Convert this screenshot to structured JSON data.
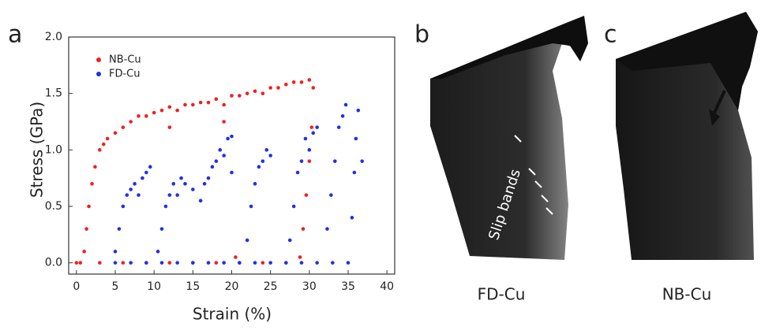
{
  "chart_data": {
    "type": "scatter",
    "panel_label": "a",
    "xlabel": "Strain (%)",
    "ylabel": "Stress (GPa)",
    "xlim": [
      -1,
      41
    ],
    "ylim": [
      -0.1,
      2.0
    ],
    "xticks": [
      0,
      5,
      10,
      15,
      20,
      25,
      30,
      35,
      40
    ],
    "yticks": [
      {
        "value": 0,
        "label": "0.0"
      },
      0.5,
      {
        "value": 1,
        "label": "1.0"
      },
      1.5,
      {
        "value": 2,
        "label": "2.0"
      }
    ],
    "legend": "upper left",
    "series": [
      {
        "name": "NB-Cu",
        "color": "#f02020",
        "x": [
          0.5,
          1,
          1.3,
          1.6,
          2,
          2.4,
          3,
          3.5,
          4,
          5,
          6,
          7,
          8,
          9,
          10,
          11,
          12,
          13,
          14,
          15,
          16,
          17,
          18,
          19,
          20,
          21,
          22,
          23,
          24,
          25,
          26,
          27,
          28,
          29,
          30,
          30.5,
          30.3,
          30,
          29.6,
          29.2,
          28.8,
          0,
          3,
          6,
          9,
          12,
          15,
          18,
          21,
          24,
          27,
          12,
          19,
          20.5
        ],
        "values": [
          0,
          0.1,
          0.3,
          0.5,
          0.7,
          0.85,
          1.0,
          1.05,
          1.1,
          1.15,
          1.2,
          1.25,
          1.3,
          1.3,
          1.33,
          1.35,
          1.38,
          1.35,
          1.4,
          1.4,
          1.42,
          1.42,
          1.45,
          1.4,
          1.48,
          1.48,
          1.5,
          1.52,
          1.5,
          1.55,
          1.55,
          1.58,
          1.6,
          1.6,
          1.62,
          1.55,
          1.2,
          0.9,
          0.6,
          0.3,
          0.05,
          0,
          0,
          0,
          0,
          0,
          0,
          0,
          0,
          0,
          0,
          1.2,
          1.25,
          0.05
        ]
      },
      {
        "name": "FD-Cu",
        "color": "#2030e8",
        "x": [
          5,
          7,
          9,
          11,
          13,
          15,
          17,
          19,
          21,
          23,
          25,
          27,
          29,
          31,
          33,
          35,
          5,
          5.5,
          6,
          6.5,
          7,
          7.5,
          8,
          8.5,
          9,
          9.5,
          10.5,
          11,
          11.5,
          12,
          12.5,
          13,
          13.5,
          14,
          15,
          16,
          16.5,
          17,
          17.5,
          18,
          18.5,
          19,
          19.5,
          20,
          20,
          22,
          22.5,
          23,
          23.5,
          24,
          24.5,
          25,
          27.5,
          28,
          28.5,
          29,
          29.5,
          30,
          30.5,
          31,
          32.3,
          32.8,
          33.3,
          33.8,
          34.3,
          34.7,
          35.5,
          35.8,
          36,
          36.3,
          36.8
        ],
        "values": [
          0,
          0,
          0,
          0,
          0,
          0,
          0,
          0,
          0,
          0,
          0,
          0,
          0,
          0,
          0,
          0,
          0.1,
          0.3,
          0.5,
          0.6,
          0.65,
          0.7,
          0.6,
          0.75,
          0.8,
          0.85,
          0.1,
          0.3,
          0.5,
          0.6,
          0.7,
          0.6,
          0.75,
          0.7,
          0.65,
          0.55,
          0.7,
          0.75,
          0.85,
          0.9,
          1.0,
          0.95,
          1.1,
          1.12,
          0.8,
          0.2,
          0.5,
          0.7,
          0.85,
          0.9,
          1.0,
          0.95,
          0.2,
          0.5,
          0.8,
          0.9,
          1.1,
          1.0,
          1.15,
          1.2,
          0.3,
          0.6,
          0.9,
          1.2,
          1.3,
          1.4,
          0.4,
          0.8,
          1.1,
          1.35,
          0.9
        ]
      }
    ]
  },
  "images": [
    {
      "label": "b",
      "caption": "FD-Cu",
      "annotation": "Slip bands"
    },
    {
      "label": "c",
      "caption": "NB-Cu"
    }
  ]
}
